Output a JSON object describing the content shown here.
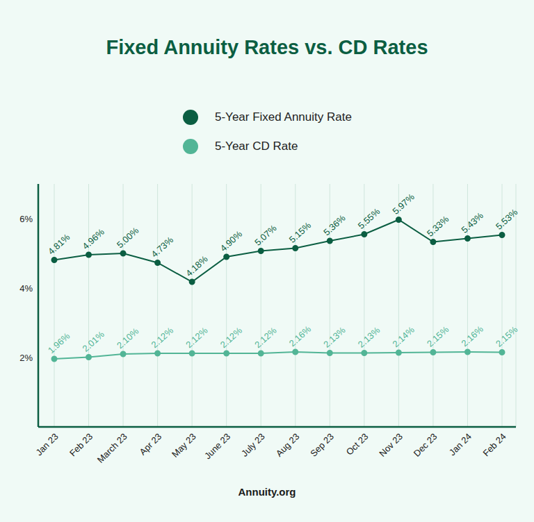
{
  "chart_data": {
    "type": "line",
    "title": "Fixed Annuity Rates vs. CD Rates",
    "source": "Annuity.org",
    "categories": [
      "Jan 23",
      "Feb 23",
      "March 23",
      "Apr 23",
      "May 23",
      "June 23",
      "July 23",
      "Aug 23",
      "Sep 23",
      "Oct 23",
      "Nov 23",
      "Dec 23",
      "Jan 24",
      "Feb 24"
    ],
    "series": [
      {
        "name": "5-Year Fixed Annuity Rate",
        "color": "#0b5e42",
        "marker": "circle",
        "values": [
          4.81,
          4.96,
          5.0,
          4.73,
          4.18,
          4.9,
          5.07,
          5.15,
          5.36,
          5.55,
          5.97,
          5.33,
          5.43,
          5.53
        ],
        "value_labels": [
          "4.81%",
          "4.96%",
          "5.00%",
          "4.73%",
          "4.18%",
          "4.90%",
          "5.07%",
          "5.15%",
          "5.36%",
          "5.55%",
          "5.97%",
          "5.33%",
          "5.43%",
          "5.53%"
        ]
      },
      {
        "name": "5-Year CD Rate",
        "color": "#52b596",
        "marker": "circle",
        "values": [
          1.96,
          2.01,
          2.1,
          2.12,
          2.12,
          2.12,
          2.12,
          2.16,
          2.13,
          2.13,
          2.14,
          2.15,
          2.16,
          2.15
        ],
        "value_labels": [
          "1.96%",
          "2.01%",
          "2.10%",
          "2.12%",
          "2.12%",
          "2.12%",
          "2.12%",
          "2.16%",
          "2.13%",
          "2.13%",
          "2.14%",
          "2.15%",
          "2.16%",
          "2.15%"
        ]
      }
    ],
    "ylim": [
      0,
      7
    ],
    "yticks": [
      {
        "value": 2,
        "label": "2%"
      },
      {
        "value": 4,
        "label": "4%"
      },
      {
        "value": 6,
        "label": "6%"
      }
    ],
    "grid": true,
    "legend": "top",
    "data_labels": true
  }
}
